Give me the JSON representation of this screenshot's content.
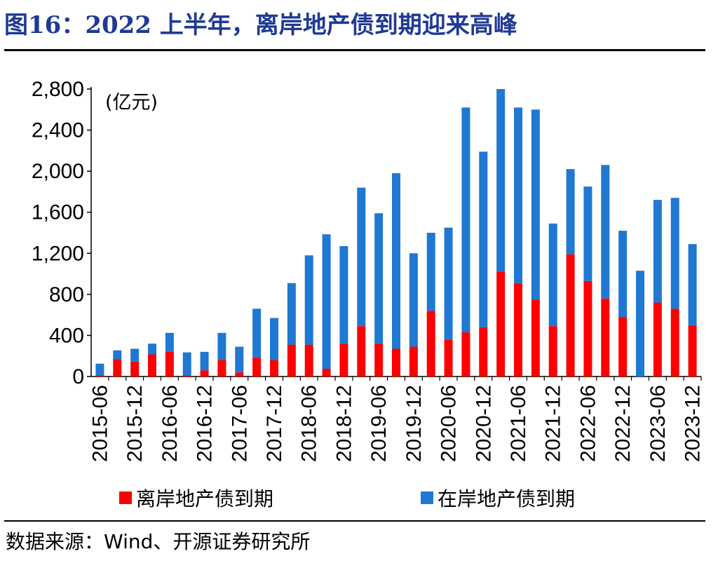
{
  "title": "图16：2022 上半年，离岸地产债到期迎来高峰",
  "source": "数据来源：Wind、开源证券研究所",
  "colors": {
    "title": "#1f3a93",
    "offshore": "#ff0000",
    "onshore": "#1f78d1"
  },
  "chart_data": {
    "type": "bar",
    "stacked": true,
    "unit_label": "(亿元)",
    "ylim": [
      0,
      2800
    ],
    "yticks": [
      "0",
      "400",
      "800",
      "1,200",
      "1,600",
      "2,000",
      "2,400",
      "2,800"
    ],
    "ytick_values": [
      0,
      400,
      800,
      1200,
      1600,
      2000,
      2400,
      2800
    ],
    "categories": [
      "2015-06",
      "2015-09",
      "2015-12",
      "2016-03",
      "2016-06",
      "2016-09",
      "2016-12",
      "2017-03",
      "2017-06",
      "2017-09",
      "2017-12",
      "2018-03",
      "2018-06",
      "2018-09",
      "2018-12",
      "2019-03",
      "2019-06",
      "2019-09",
      "2019-12",
      "2020-03",
      "2020-06",
      "2020-09",
      "2020-12",
      "2021-03",
      "2021-06",
      "2021-09",
      "2021-12",
      "2022-03",
      "2022-06",
      "2022-09",
      "2022-12",
      "2023-03",
      "2023-06",
      "2023-09",
      "2023-12"
    ],
    "x_tick_labels": [
      "2015-06",
      "2015-12",
      "2016-06",
      "2016-12",
      "2017-06",
      "2017-12",
      "2018-06",
      "2018-12",
      "2019-06",
      "2019-12",
      "2020-06",
      "2020-12",
      "2021-06",
      "2021-12",
      "2022-06",
      "2022-12",
      "2023-06",
      "2023-12"
    ],
    "series": [
      {
        "name": "离岸地产债到期",
        "values": [
          10,
          170,
          145,
          215,
          240,
          10,
          60,
          160,
          40,
          185,
          160,
          310,
          310,
          75,
          320,
          490,
          320,
          270,
          290,
          640,
          360,
          430,
          480,
          1020,
          910,
          750,
          490,
          1190,
          930,
          760,
          580,
          0,
          720,
          660,
          500
        ]
      },
      {
        "name": "在岸地产债到期",
        "values": [
          115,
          85,
          125,
          105,
          185,
          225,
          180,
          265,
          250,
          475,
          410,
          600,
          870,
          1310,
          950,
          1350,
          1270,
          1710,
          910,
          760,
          1090,
          2190,
          1710,
          1780,
          1710,
          1850,
          1000,
          830,
          920,
          1300,
          840,
          1030,
          1000,
          1080,
          790
        ]
      }
    ],
    "legend_position": "bottom"
  }
}
